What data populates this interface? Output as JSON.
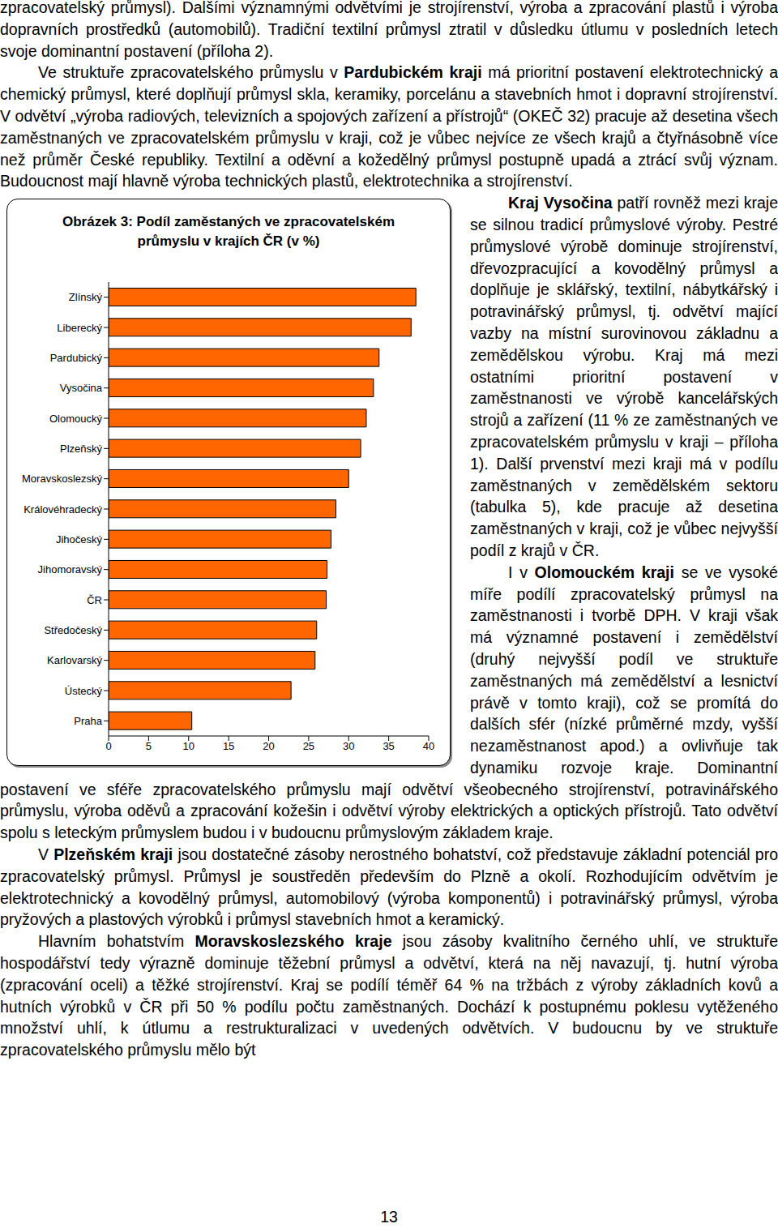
{
  "chart_data": {
    "type": "bar",
    "orientation": "horizontal",
    "title": "Obrázek 3: Podíl zaměstaných ve zpracovatelském průmyslu v krajích ČR (v %)",
    "categories": [
      "Zlínský",
      "Liberecký",
      "Pardubický",
      "Vysočina",
      "Olomoucký",
      "Plzeňský",
      "Moravskoslezský",
      "Královéhradecký",
      "Jihočeský",
      "Jihomoravský",
      "ČR",
      "Středočeský",
      "Karlovarský",
      "Ústecký",
      "Praha"
    ],
    "values": [
      38.4,
      37.8,
      33.8,
      33.1,
      32.2,
      31.5,
      30.0,
      28.4,
      27.8,
      27.3,
      27.2,
      26.0,
      25.8,
      22.8,
      10.4
    ],
    "color": "#ff6600",
    "xlim": [
      0,
      40
    ],
    "xticks": [
      0,
      5,
      10,
      15,
      20,
      25,
      30,
      35,
      40
    ],
    "grid": false
  },
  "document": {
    "paragraphs": [
      [
        "zpracovatelský průmysl). Dalšími významnými odvětvími je strojírenství, výroba a zpracování plastů i výroba dopravních prostředků (automobilů). Tradiční textilní průmysl ztratil v důsledku útlumu v posledních letech svoje dominantní postavení (příloha 2)."
      ],
      [
        "Ve struktuře zpracovatelského průmyslu v ",
        {
          "bold": "Pardubickém kraji"
        },
        " má prioritní postavení elektrotechnický a chemický průmysl, které doplňují průmysl skla, keramiky, porcelánu a stavebních hmot i dopravní strojírenství. V odvětví „výroba radiových, televizních a spojových zařízení a přístrojů“ (OKEČ 32) pracuje až desetina všech zaměstnaných ve zpracovatelském průmyslu v kraji, což je vůbec nejvíce ze všech krajů a čtyřnásobně více než průměr České republiky. Textilní a oděvní a kožedělný průmysl postupně upadá a ztrácí svůj význam. Budoucnost mají hlavně výroba technických plastů, elektrotechnika a strojírenství."
      ],
      [
        {
          "bold": "Kraj Vysočina"
        },
        " patří rovněž mezi kraje se silnou tradicí průmyslové výroby. Pestré průmyslové výrobě dominuje strojírenství, dřevozpracující a kovodělný průmysl a doplňuje je sklářský, textilní, nábytkářský i potravinářský průmysl, tj. odvětví mající vazby na místní surovinovou základnu a zemědělskou výrobu. Kraj má mezi ostatními prioritní postavení v zaměstnanosti ve výrobě kancelářských strojů a zařízení (11 % ze zaměstnaných ve zpracovatelském průmyslu v kraji – příloha 1). Další prvenství mezi kraji má v podílu zaměstnaných v zemědělském sektoru (tabulka 5), kde pracuje až desetina zaměstnaných v kraji, což je vůbec nejvyšší podíl z krajů v ČR."
      ],
      [
        "I v ",
        {
          "bold": "Olomouckém kraji"
        },
        " se ve vysoké míře podílí zpracovatelský průmysl na zaměstnanosti i tvorbě DPH. V kraji však má významné postavení i zemědělství (druhý nejvyšší podíl ve struktuře zaměstnaných má zemědělství a lesnictví právě v tomto kraji), což se promítá do dalších sfér (nízké průměrné mzdy, vyšší nezaměstnanost apod.) a ovlivňuje tak dynamiku rozvoje kraje. Dominantní postavení ve sféře zpracovatelského průmyslu mají odvětví všeobecného strojírenství, potravinářského průmyslu, výroba oděvů a zpracování kožešin i odvětví výroby elektrických a optických přístrojů. Tato odvětví spolu s leteckým průmyslem budou i v budoucnu průmyslovým základem kraje."
      ],
      [
        "V ",
        {
          "bold": "Plzeňském kraji"
        },
        " jsou dostatečné zásoby nerostného bohatství, což představuje základní potenciál pro zpracovatelský průmysl. Průmysl je soustředěn především do Plzně a okolí. Rozhodujícím odvětvím je elektrotechnický a kovodělný průmysl, automobilový (výroba komponentů) i potravinářský průmysl, výroba pryžových a plastových výrobků i průmysl stavebních hmot a keramický."
      ],
      [
        "Hlavním bohatstvím ",
        {
          "bold": "Moravskoslezského kraje"
        },
        " jsou zásoby kvalitního černého uhlí, ve struktuře hospodářství tedy výrazně dominuje těžební průmysl a odvětví, která na něj navazují, tj. hutní výroba (zpracování oceli) a těžké strojírenství. Kraj se podílí téměř 64 % na tržbách z výroby základních kovů a hutních výrobků v ČR při 50 % podílu počtu zaměstnaných. Dochází k postupnému poklesu vytěženého množství uhlí, k útlumu a restrukturalizaci v uvedených odvětvích. V budoucnu by ve struktuře zpracovatelského průmyslu mělo být"
      ]
    ],
    "page_number": 13
  }
}
